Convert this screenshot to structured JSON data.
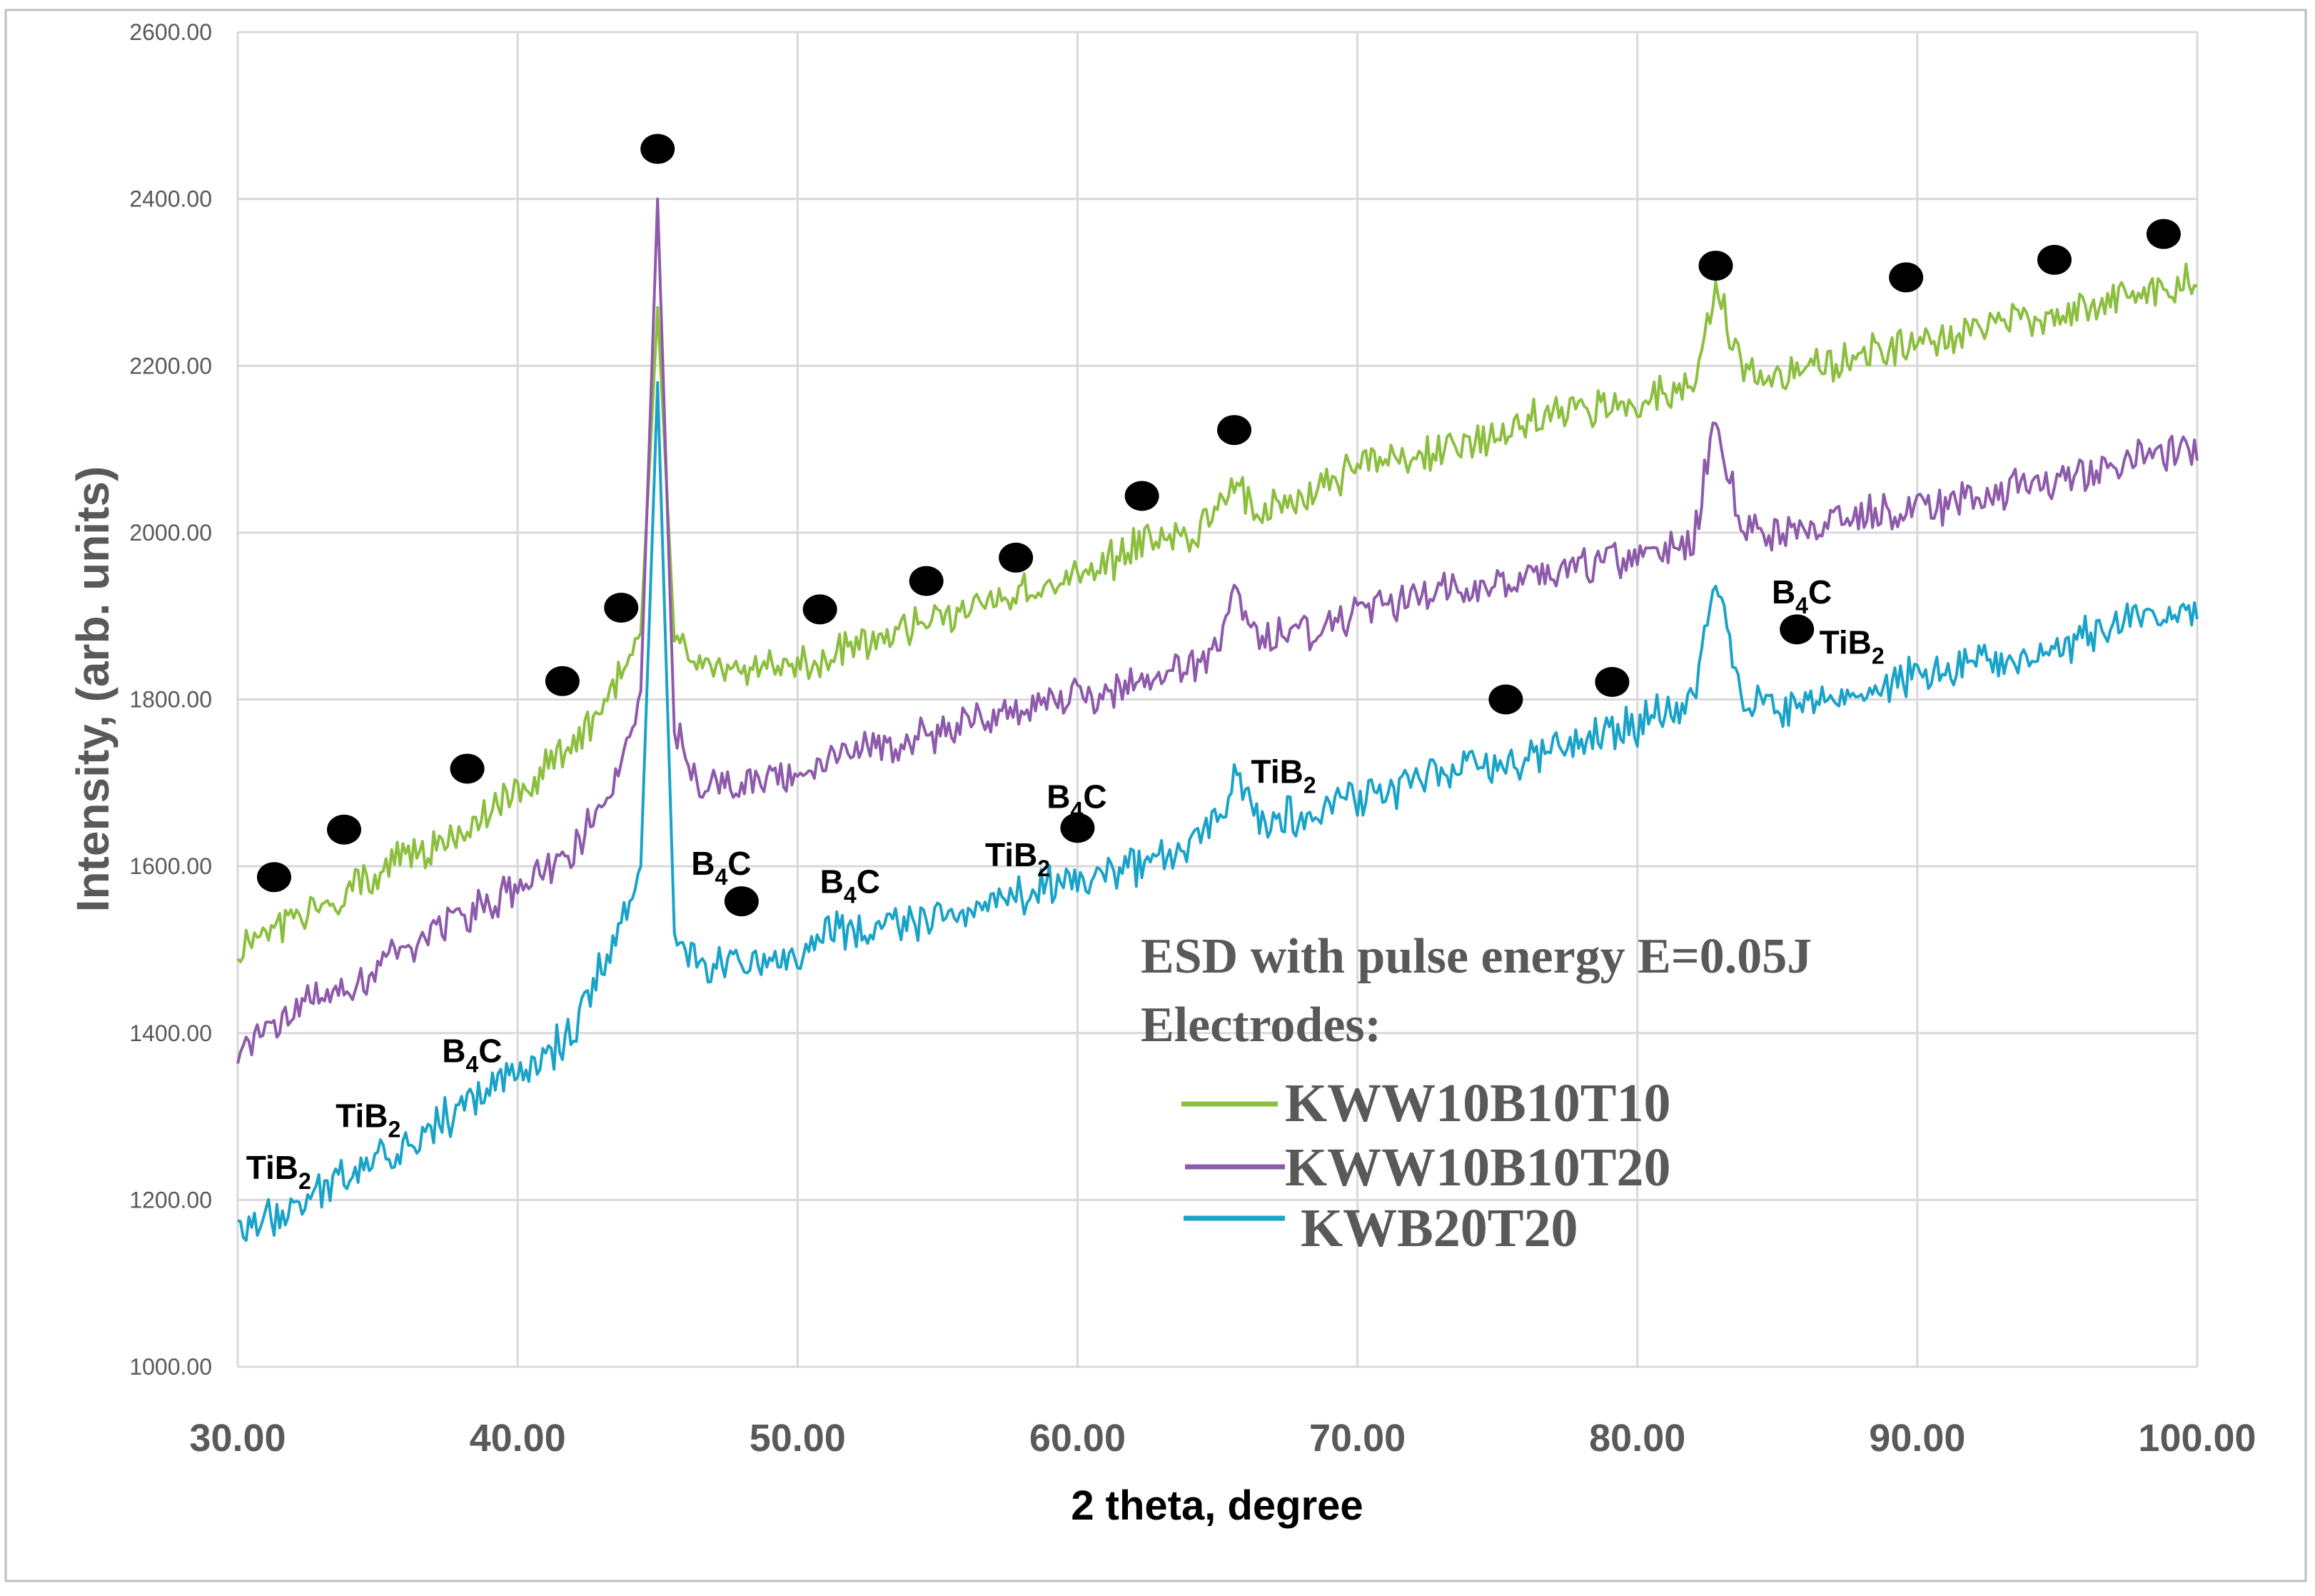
{
  "chart_data": {
    "type": "line",
    "title": "",
    "xlabel": "2 theta, degree",
    "ylabel": "Intensity, (arb. units)",
    "xlim": [
      30,
      100
    ],
    "ylim": [
      1000,
      2600
    ],
    "x_ticks": [
      "30.00",
      "40.00",
      "50.00",
      "60.00",
      "70.00",
      "80.00",
      "90.00",
      "100.00"
    ],
    "y_ticks": [
      "1000.00",
      "1200.00",
      "1400.00",
      "1600.00",
      "1800.00",
      "2000.00",
      "2200.00",
      "2400.00",
      "2600.00"
    ],
    "legend_title": [
      "ESD with pulse energy  E=0.05J",
      "Electrodes:"
    ],
    "series": [
      {
        "name": "KWW10B10T10",
        "color": "#8cbf3f",
        "x": [
          30,
          32,
          34,
          36,
          38,
          40,
          42,
          43.5,
          44.4,
          45,
          45.6,
          46.5,
          48,
          50,
          52,
          55,
          58,
          60,
          62,
          64,
          65,
          65.6,
          66.5,
          68,
          70,
          72,
          75,
          78,
          80,
          82,
          82.8,
          83.8,
          85,
          88,
          90,
          93,
          95,
          98,
          100
        ],
        "values": [
          1500,
          1540,
          1570,
          1610,
          1640,
          1690,
          1750,
          1820,
          1880,
          2270,
          1870,
          1840,
          1830,
          1840,
          1860,
          1900,
          1930,
          1950,
          1980,
          2000,
          2020,
          2070,
          2020,
          2040,
          2080,
          2090,
          2120,
          2150,
          2160,
          2180,
          2290,
          2190,
          2190,
          2210,
          2230,
          2250,
          2260,
          2290,
          2300
        ]
      },
      {
        "name": "KWW10B10T20",
        "color": "#8e5aab",
        "x": [
          30,
          32,
          34,
          36,
          38,
          40,
          42,
          43.5,
          44.4,
          45,
          45.6,
          46.5,
          48,
          50,
          52,
          55,
          58,
          60,
          62,
          64,
          65,
          65.6,
          66.5,
          68,
          70,
          72,
          75,
          78,
          80,
          82,
          82.8,
          83.8,
          85,
          88,
          90,
          93,
          95,
          98,
          100
        ],
        "values": [
          1390,
          1430,
          1460,
          1500,
          1540,
          1570,
          1620,
          1700,
          1810,
          2400,
          1760,
          1700,
          1700,
          1710,
          1730,
          1760,
          1790,
          1800,
          1820,
          1840,
          1860,
          1940,
          1870,
          1880,
          1900,
          1920,
          1940,
          1960,
          1970,
          1990,
          2140,
          2000,
          2000,
          2020,
          2030,
          2050,
          2060,
          2090,
          2100
        ]
      },
      {
        "name": "KWB20T20",
        "color": "#1aa3c8",
        "x": [
          30,
          32,
          34,
          36,
          38,
          40,
          42,
          43.5,
          44.4,
          45,
          45.6,
          46.5,
          48,
          50,
          51,
          52,
          55,
          57,
          60,
          62,
          64,
          65,
          65.6,
          66.5,
          68,
          70,
          72,
          75,
          78,
          80,
          82,
          82.8,
          83.8,
          85,
          88,
          90,
          93,
          95,
          98,
          100
        ],
        "values": [
          1160,
          1190,
          1230,
          1270,
          1310,
          1350,
          1400,
          1520,
          1600,
          2180,
          1520,
          1480,
          1480,
          1490,
          1530,
          1520,
          1540,
          1560,
          1580,
          1600,
          1620,
          1650,
          1720,
          1660,
          1660,
          1680,
          1700,
          1720,
          1750,
          1770,
          1800,
          1950,
          1800,
          1790,
          1810,
          1830,
          1850,
          1860,
          1900,
          1910
        ]
      }
    ],
    "peak_markers": [
      {
        "x": 31.3,
        "y": 1587
      },
      {
        "x": 33.8,
        "y": 1644
      },
      {
        "x": 38.2,
        "y": 1717
      },
      {
        "x": 41.6,
        "y": 1822
      },
      {
        "x": 43.7,
        "y": 1910
      },
      {
        "x": 45.0,
        "y": 2460
      },
      {
        "x": 48.0,
        "y": 1558
      },
      {
        "x": 50.8,
        "y": 1908
      },
      {
        "x": 54.6,
        "y": 1942
      },
      {
        "x": 57.8,
        "y": 1970
      },
      {
        "x": 60.0,
        "y": 1646
      },
      {
        "x": 62.3,
        "y": 2044
      },
      {
        "x": 65.6,
        "y": 2123
      },
      {
        "x": 75.3,
        "y": 1800
      },
      {
        "x": 79.1,
        "y": 1821
      },
      {
        "x": 82.8,
        "y": 2320
      },
      {
        "x": 85.7,
        "y": 1884
      },
      {
        "x": 89.6,
        "y": 2306
      },
      {
        "x": 94.9,
        "y": 2327
      },
      {
        "x": 98.8,
        "y": 2358
      }
    ],
    "phase_labels": [
      {
        "base": "TiB",
        "sub": "2",
        "x": 30.3,
        "y": 1225
      },
      {
        "base": "TiB",
        "sub": "2",
        "x": 33.5,
        "y": 1287
      },
      {
        "base": "B",
        "sub": "4",
        "tail": "C",
        "x": 37.3,
        "y": 1365
      },
      {
        "base": "B",
        "sub": "4",
        "tail": "C",
        "x": 46.2,
        "y": 1590
      },
      {
        "base": "B",
        "sub": "4",
        "tail": "C",
        "x": 50.8,
        "y": 1568
      },
      {
        "base": "TiB",
        "sub": "2",
        "x": 56.7,
        "y": 1600
      },
      {
        "base": "B",
        "sub": "4",
        "tail": "C",
        "x": 58.9,
        "y": 1670
      },
      {
        "base": "TiB",
        "sub": "2",
        "x": 66.2,
        "y": 1700
      },
      {
        "base": "B",
        "sub": "4",
        "tail": "C",
        "x": 84.8,
        "y": 1915
      },
      {
        "base": "TiB",
        "sub": "2",
        "x": 86.5,
        "y": 1855
      }
    ]
  }
}
